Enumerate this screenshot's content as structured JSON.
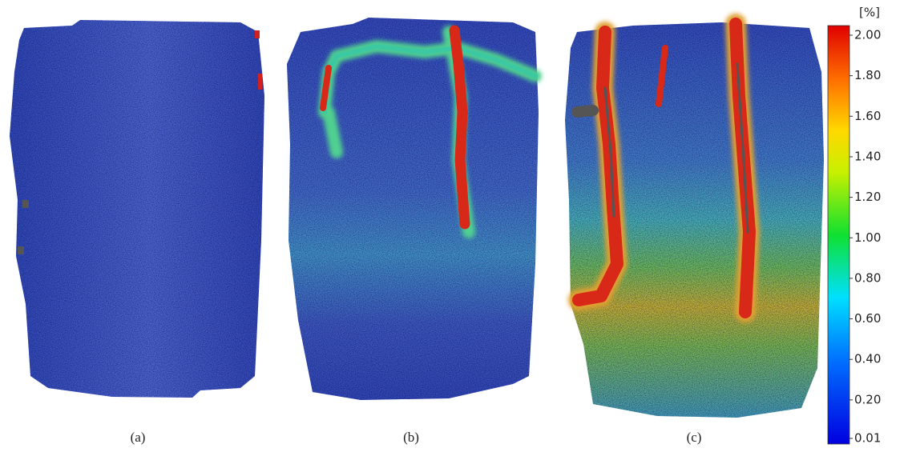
{
  "panels": [
    {
      "label": "(a)"
    },
    {
      "label": "(b)"
    },
    {
      "label": "(c)"
    }
  ],
  "colorbar": {
    "title": "[%]",
    "lim": [
      0.01,
      2
    ],
    "ticks": [
      {
        "value": 2,
        "label": "2.00"
      },
      {
        "value": 1.8,
        "label": "1.80"
      },
      {
        "value": 1.6,
        "label": "1.60"
      },
      {
        "value": 1.4,
        "label": "1.40"
      },
      {
        "value": 1.2,
        "label": "1.20"
      },
      {
        "value": 1,
        "label": "1.00"
      },
      {
        "value": 0.8,
        "label": "0.80"
      },
      {
        "value": 0.6,
        "label": "0.60"
      },
      {
        "value": 0.4,
        "label": "0.40"
      },
      {
        "value": 0.2,
        "label": "0.20"
      },
      0.01
    ]
  }
}
